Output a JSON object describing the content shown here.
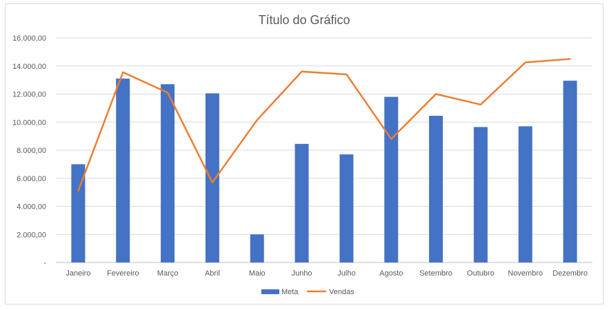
{
  "chart_data": {
    "type": "bar",
    "title": "Título do Gráfico",
    "categories": [
      "Janeiro",
      "Fevereiro",
      "Março",
      "Abril",
      "Maio",
      "Junho",
      "Julho",
      "Agosto",
      "Setembro",
      "Outubro",
      "Novembro",
      "Dezembro"
    ],
    "series": [
      {
        "name": "Meta",
        "type": "bar",
        "color": "#4472C4",
        "values": [
          7000,
          13100,
          12700,
          12050,
          2000,
          8450,
          7700,
          11800,
          10450,
          9650,
          9700,
          12950
        ]
      },
      {
        "name": "Vendas",
        "type": "line",
        "color": "#ED7D31",
        "values": [
          5100,
          13550,
          12100,
          5700,
          10150,
          13600,
          13400,
          8800,
          12000,
          11250,
          14250,
          14500
        ]
      }
    ],
    "ylim": [
      0,
      16000
    ],
    "y_ticks": [
      0,
      2000,
      4000,
      6000,
      8000,
      10000,
      12000,
      14000,
      16000
    ],
    "y_tick_labels": [
      "-",
      "2.000,00",
      "4.000,00",
      "6.000,00",
      "8.000,00",
      "10.000,00",
      "12.000,00",
      "14.000,00",
      "16.000,00"
    ],
    "xlabel": "",
    "ylabel": "",
    "grid": true,
    "legend_position": "bottom",
    "gridline_color": "#d9d9d9",
    "axis_line_color": "#bfbfbf"
  }
}
